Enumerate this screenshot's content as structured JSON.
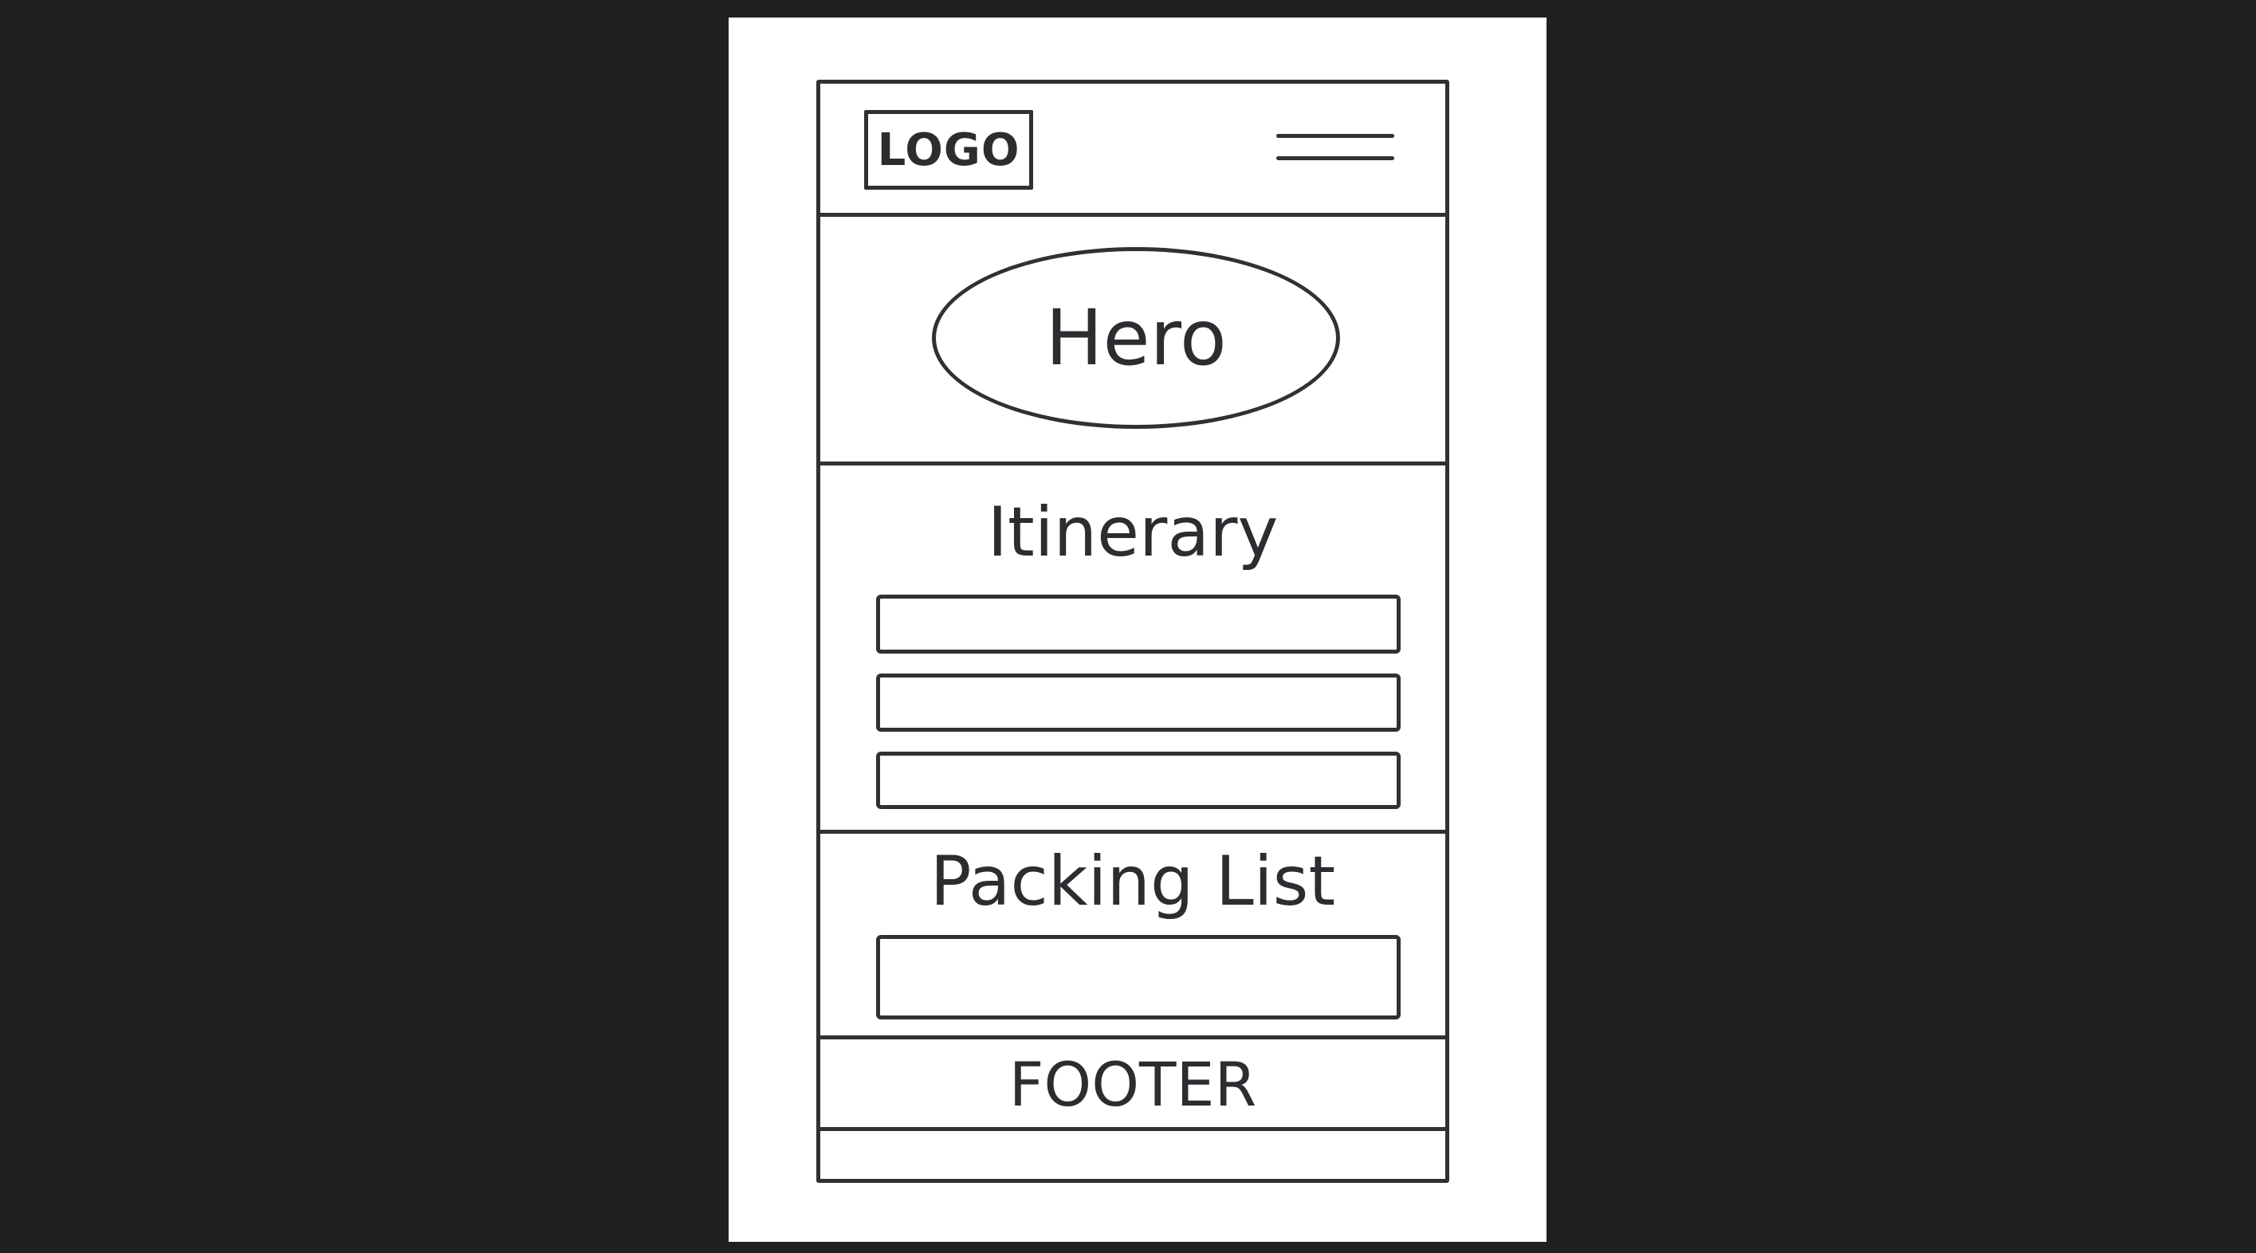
{
  "header": {
    "logo_label": "LOGO",
    "menu_icon": "hamburger-menu-icon"
  },
  "hero": {
    "label": "Hero"
  },
  "itinerary": {
    "title": "Itinerary",
    "item_count": 3
  },
  "packing_list": {
    "title": "Packing List"
  },
  "footer": {
    "label": "FOOTER"
  },
  "colors": {
    "background": "#1f2120",
    "paper": "#ffffff",
    "stroke": "#2f3134"
  }
}
